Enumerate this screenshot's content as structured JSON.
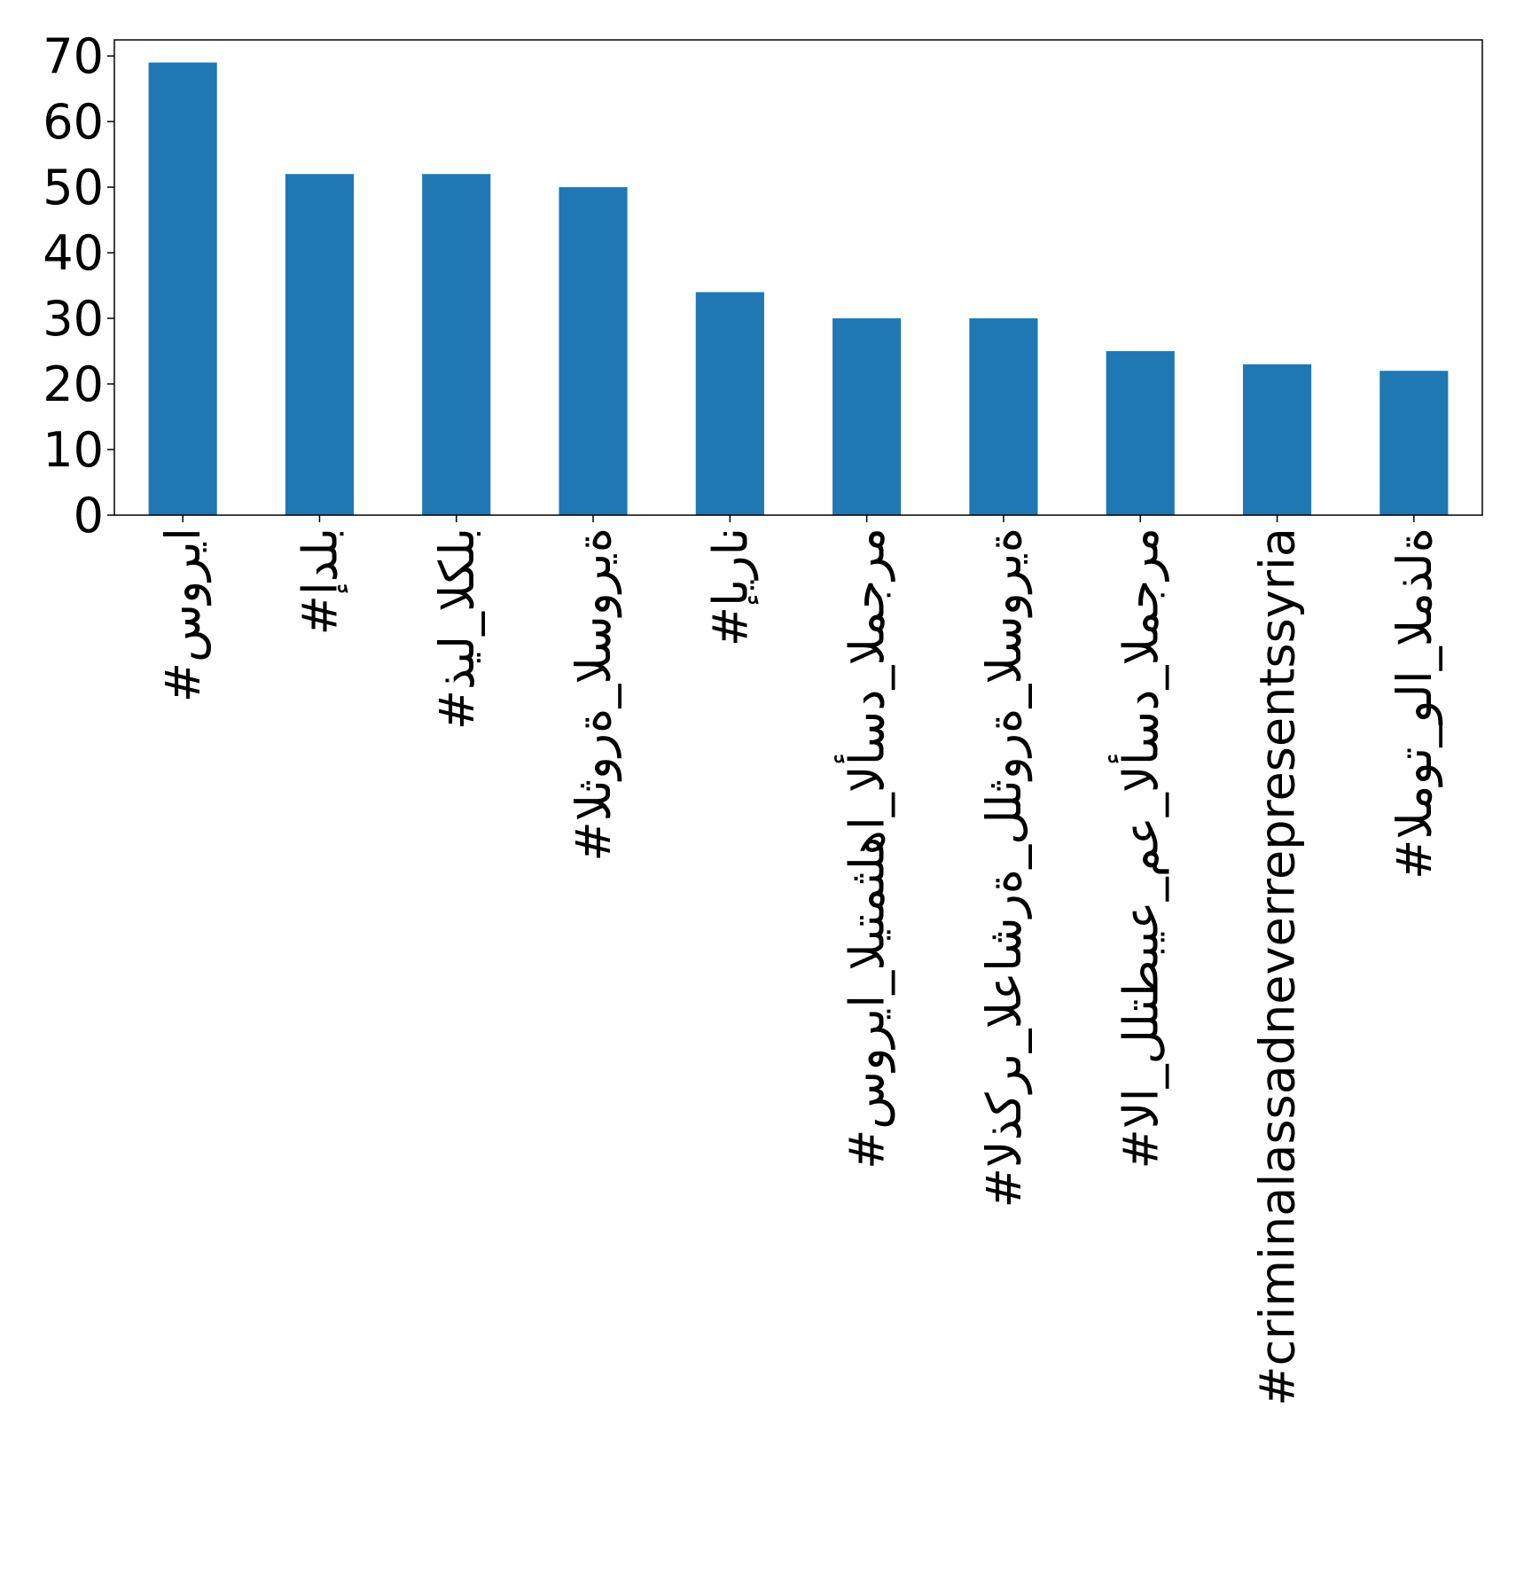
{
  "chart_data": {
    "type": "bar",
    "categories": [
      "#سوريا",
      "#إدلب",
      "#ذيل_الكلب",
      "#الثورة_السورية",
      "#إيران",
      "#سوريا_اليتمثلها_الأسد_المجرم",
      "#الذكرى_العاشرة_للثورة_السورية",
      "#الا_للتطبيع_مع_الأسد_المجرم",
      "#criminalassadneverrepresentssyria",
      "#الموت_ولا_المذلة"
    ],
    "values": [
      69,
      52,
      52,
      50,
      34,
      30,
      30,
      25,
      23,
      22
    ],
    "color": "#1f77b4",
    "ylim": [
      0,
      72.45
    ],
    "yticks": [
      0,
      10,
      20,
      30,
      40,
      50,
      60,
      70
    ],
    "grid": false
  }
}
